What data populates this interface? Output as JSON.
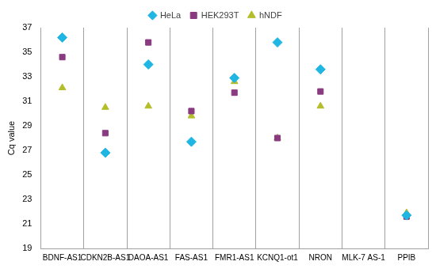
{
  "chart_data": {
    "type": "scatter",
    "y_label": "Cq value",
    "categories": [
      "BDNF-AS1",
      "CDKN2B-AS1",
      "DAOA-AS1",
      "FAS-AS1",
      "FMR1-AS1",
      "KCNQ1-ot1",
      "NRON",
      "MLK-7 AS-1",
      "PPIB"
    ],
    "series": [
      {
        "name": "HeLa",
        "color": "#1fb6e3",
        "marker": "diamond",
        "values": [
          36.2,
          26.8,
          34.0,
          27.7,
          32.9,
          35.8,
          33.6,
          null,
          21.7
        ]
      },
      {
        "name": "HEK293T",
        "color": "#8a3b80",
        "marker": "square",
        "values": [
          34.6,
          28.4,
          35.8,
          30.2,
          31.7,
          28.0,
          31.8,
          null,
          21.6
        ]
      },
      {
        "name": "hNDF",
        "color": "#b4be2a",
        "marker": "triangle",
        "values": [
          32.1,
          30.5,
          30.6,
          29.8,
          32.6,
          28.0,
          30.6,
          null,
          21.9
        ]
      }
    ],
    "ylim": [
      19,
      37
    ],
    "yticks": [
      19,
      21,
      23,
      25,
      27,
      29,
      31,
      33,
      35,
      37
    ],
    "grid": "x",
    "legend": "top"
  }
}
